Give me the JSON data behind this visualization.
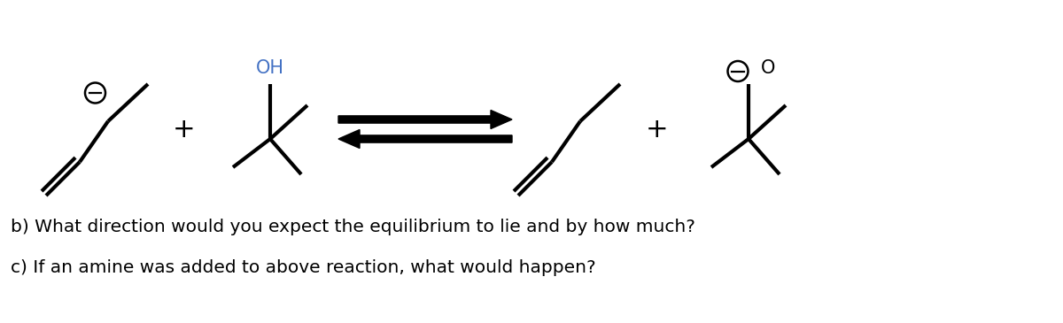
{
  "bg_color": "#ffffff",
  "text_color": "#000000",
  "line_color": "#000000",
  "line_width": 3.0,
  "fig_width": 12.0,
  "fig_height": 3.65,
  "dpi": 100,
  "question_b": "b) What direction would you expect the equilibrium to lie and by how much?",
  "question_c": "c) If an amine was added to above reaction, what would happen?",
  "text_fontsize": 14.5,
  "plus_fontsize": 22,
  "OH_fontsize": 15,
  "OH_color": "#4472c4"
}
